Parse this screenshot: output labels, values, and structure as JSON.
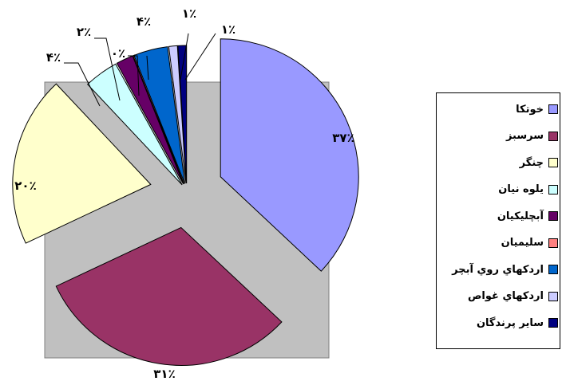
{
  "chart_data": {
    "type": "pie",
    "title": "",
    "legend_position": "right",
    "categories": [
      "خوتکا",
      "سرسبز",
      "چنگر",
      "یلوه نیان",
      "آبچلیکیان",
      "سلیمیان",
      "اردکهاي روي آبچر",
      "اردکهاي غواص",
      "ساير پرندگان"
    ],
    "values": [
      37,
      31,
      20,
      4,
      2,
      0,
      4,
      1,
      1
    ],
    "data_labels": [
      "۳۷٪",
      "۳۱٪",
      "۲۰٪",
      "۴٪",
      "۲٪",
      "۰٪",
      "۴٪",
      "۱٪",
      "۱٪"
    ],
    "colors": [
      "#9999FF",
      "#993366",
      "#FFFFCC",
      "#CCFFFF",
      "#660066",
      "#FF8080",
      "#0066CC",
      "#CCCCFF",
      "#000080"
    ],
    "plot_area_color": "#C0C0C0"
  }
}
